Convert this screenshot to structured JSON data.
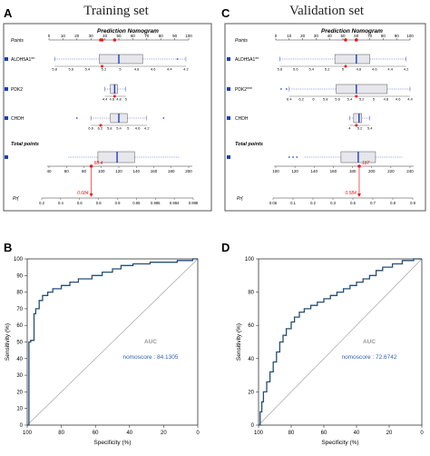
{
  "chart_data": [
    {
      "panel": "A",
      "panel_title": "Training    set",
      "type": "box",
      "nomogram_title": "Prediction Nomogram",
      "points_axis": {
        "label": "Points",
        "ticks": [
          0,
          10,
          20,
          30,
          40,
          50,
          60,
          70,
          80,
          90,
          100
        ]
      },
      "predictors": [
        {
          "label": "ALDH5A1**",
          "ticks": [
            "5.8",
            "5.6",
            "5.4",
            "5.2",
            "5",
            "4.8",
            "4.6",
            "4.4",
            "4.2"
          ],
          "box_points": {
            "min": 4,
            "q1": 36,
            "median": 50,
            "q3": 67,
            "max": 98
          },
          "outliers_points": [
            92
          ],
          "marker_points": [
            38
          ]
        },
        {
          "label": "PDK2",
          "ticks": [
            "4.4",
            "4.6",
            "4.8",
            "5"
          ],
          "box_points": {
            "min": 40,
            "q1": 44,
            "median": 47,
            "q3": 49,
            "max": 55
          },
          "outliers_points": [],
          "marker_points": [
            47
          ]
        },
        {
          "label": "CHDH",
          "ticks": [
            "6.6",
            "6.2",
            "5.8",
            "5.4",
            "5",
            "4.6",
            "4.2"
          ],
          "box_points": {
            "min": 30,
            "q1": 44,
            "median": 50,
            "q3": 56,
            "max": 70
          },
          "outliers_points": [
            20,
            82
          ],
          "marker_points": [
            37
          ]
        }
      ],
      "total_points": {
        "label": "Total points",
        "ticks": [
          "40",
          "60",
          "80",
          "100",
          "120",
          "140",
          "160",
          "180",
          "200"
        ],
        "box": {
          "min": 62,
          "q1": 96,
          "median": 118,
          "q3": 138,
          "max": 190
        },
        "marked_value": "88.4"
      },
      "probability_axis": {
        "label": "Pr(",
        "ticks": [
          "0.2",
          "0.4",
          "0.6",
          "0.8",
          "0.9",
          "0.95",
          "0.985",
          "0.994",
          "0.998"
        ],
        "marked_value": "0.684"
      }
    },
    {
      "panel": "C",
      "panel_title": "Validation    set",
      "type": "box",
      "nomogram_title": "Prediction Nomogram",
      "points_axis": {
        "label": "Points",
        "ticks": [
          0,
          10,
          20,
          30,
          40,
          50,
          60,
          70,
          80,
          90,
          100
        ]
      },
      "predictors": [
        {
          "label": "ALDH5A1**",
          "ticks": [
            "5.8",
            "5.6",
            "5.4",
            "5.2",
            "5",
            "4.8",
            "4.6",
            "4.4",
            "4.2"
          ],
          "box_points": {
            "min": 3,
            "q1": 44,
            "median": 60,
            "q3": 70,
            "max": 97
          },
          "outliers_points": [],
          "marker_points": [
            52
          ]
        },
        {
          "label": "PDK2***",
          "ticks": [
            "6.4",
            "6.2",
            "6",
            "5.8",
            "5.6",
            "5.4",
            "5.2",
            "5",
            "4.8",
            "4.6",
            "4.4"
          ],
          "box_points": {
            "min": 10,
            "q1": 45,
            "median": 60,
            "q3": 83,
            "max": 100
          },
          "outliers_points": [
            4,
            8
          ],
          "marker_points": [
            60
          ]
        },
        {
          "label": "CHDH",
          "ticks": [
            "4",
            "5.2",
            "5.4"
          ],
          "box_points": {
            "min": 55,
            "q1": 58,
            "median": 62,
            "q3": 64,
            "max": 70
          },
          "outliers_points": [],
          "marker_points": [
            60
          ]
        }
      ],
      "total_points": {
        "label": "Total points",
        "ticks": [
          "100",
          "120",
          "140",
          "160",
          "180",
          "200",
          "220",
          "240"
        ],
        "box": {
          "min": 130,
          "q1": 168,
          "median": 186,
          "q3": 204,
          "max": 232
        },
        "outliers": [
          114,
          118,
          122
        ],
        "marked_value": "187"
      },
      "probability_axis": {
        "label": "Pr(",
        "ticks": [
          "0.06",
          "0.1",
          "0.2",
          "0.3",
          "0.5",
          "0.7",
          "0.8",
          "0.9"
        ],
        "marked_value": "0.584"
      }
    },
    {
      "panel": "B",
      "type": "line",
      "xlabel": "Specificity (%)",
      "ylabel": "Sensitivity (%)",
      "xlim": [
        100,
        0
      ],
      "ylim": [
        0,
        100
      ],
      "x_ticks": [
        100,
        80,
        60,
        40,
        20,
        0
      ],
      "y_ticks": [
        0,
        10,
        20,
        30,
        40,
        50,
        60,
        70,
        80,
        90,
        100
      ],
      "annotation_title": "AUC",
      "annotation_text": "nomoscore : 84.1305",
      "series": [
        {
          "points": [
            [
              100,
              0
            ],
            [
              99,
              0
            ],
            [
              99,
              50
            ],
            [
              98,
              50
            ],
            [
              98,
              51
            ],
            [
              96,
              51
            ],
            [
              96,
              67
            ],
            [
              95,
              67
            ],
            [
              95,
              70
            ],
            [
              93,
              70
            ],
            [
              93,
              75
            ],
            [
              91,
              75
            ],
            [
              91,
              78
            ],
            [
              88,
              78
            ],
            [
              88,
              80
            ],
            [
              85,
              80
            ],
            [
              85,
              82
            ],
            [
              80,
              82
            ],
            [
              80,
              84
            ],
            [
              75,
              84
            ],
            [
              75,
              86
            ],
            [
              70,
              86
            ],
            [
              70,
              88
            ],
            [
              62,
              88
            ],
            [
              62,
              90
            ],
            [
              56,
              90
            ],
            [
              56,
              92
            ],
            [
              50,
              92
            ],
            [
              50,
              94
            ],
            [
              45,
              94
            ],
            [
              45,
              96
            ],
            [
              38,
              96
            ],
            [
              38,
              97
            ],
            [
              28,
              97
            ],
            [
              28,
              98
            ],
            [
              12,
              98
            ],
            [
              12,
              99
            ],
            [
              3,
              99
            ],
            [
              3,
              100
            ],
            [
              0,
              100
            ]
          ]
        }
      ]
    },
    {
      "panel": "D",
      "type": "line",
      "xlabel": "Specificity (%)",
      "ylabel": "Sensitivity (%)",
      "xlim": [
        100,
        0
      ],
      "ylim": [
        0,
        100
      ],
      "x_ticks": [
        100,
        80,
        60,
        40,
        20,
        0
      ],
      "y_ticks": [
        0,
        20,
        40,
        60,
        80,
        100
      ],
      "annotation_title": "AUC",
      "annotation_text": "nomoscore : 72.6742",
      "series": [
        {
          "points": [
            [
              100,
              0
            ],
            [
              99,
              0
            ],
            [
              99,
              8
            ],
            [
              98,
              8
            ],
            [
              98,
              14
            ],
            [
              97,
              14
            ],
            [
              97,
              20
            ],
            [
              95,
              20
            ],
            [
              95,
              26
            ],
            [
              93,
              26
            ],
            [
              93,
              32
            ],
            [
              91,
              32
            ],
            [
              91,
              38
            ],
            [
              89,
              38
            ],
            [
              89,
              44
            ],
            [
              87,
              44
            ],
            [
              87,
              50
            ],
            [
              85,
              50
            ],
            [
              85,
              54
            ],
            [
              83,
              54
            ],
            [
              83,
              58
            ],
            [
              80,
              58
            ],
            [
              80,
              62
            ],
            [
              78,
              62
            ],
            [
              78,
              65
            ],
            [
              75,
              65
            ],
            [
              75,
              68
            ],
            [
              72,
              68
            ],
            [
              72,
              70
            ],
            [
              68,
              70
            ],
            [
              68,
              72
            ],
            [
              64,
              72
            ],
            [
              64,
              74
            ],
            [
              60,
              74
            ],
            [
              60,
              76
            ],
            [
              56,
              76
            ],
            [
              56,
              78
            ],
            [
              52,
              78
            ],
            [
              52,
              80
            ],
            [
              48,
              80
            ],
            [
              48,
              82
            ],
            [
              44,
              82
            ],
            [
              44,
              84
            ],
            [
              40,
              84
            ],
            [
              40,
              86
            ],
            [
              36,
              86
            ],
            [
              36,
              88
            ],
            [
              32,
              88
            ],
            [
              32,
              90
            ],
            [
              28,
              90
            ],
            [
              28,
              93
            ],
            [
              24,
              93
            ],
            [
              24,
              95
            ],
            [
              18,
              95
            ],
            [
              18,
              97
            ],
            [
              12,
              97
            ],
            [
              12,
              99
            ],
            [
              5,
              99
            ],
            [
              5,
              100
            ],
            [
              0,
              100
            ]
          ]
        }
      ]
    }
  ]
}
